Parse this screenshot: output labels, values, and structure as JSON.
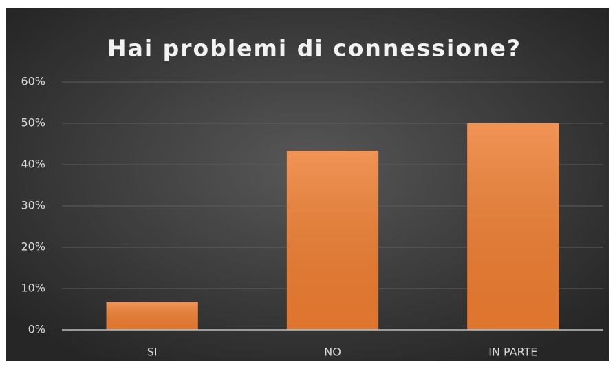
{
  "chart_data": {
    "type": "bar",
    "title": "Hai problemi di connessione?",
    "categories": [
      "SI",
      "NO",
      "IN PARTE"
    ],
    "values": [
      6.7,
      43.3,
      50
    ],
    "color": "#ed7d31",
    "ylim": [
      0,
      60
    ],
    "yticks": [
      {
        "value": 0,
        "label": "0%"
      },
      {
        "value": 10,
        "label": "10%"
      },
      {
        "value": 20,
        "label": "20%"
      },
      {
        "value": 30,
        "label": "30%"
      },
      {
        "value": 40,
        "label": "40%"
      },
      {
        "value": 50,
        "label": "50%"
      },
      {
        "value": 60,
        "label": "60%"
      }
    ],
    "grid": true
  }
}
